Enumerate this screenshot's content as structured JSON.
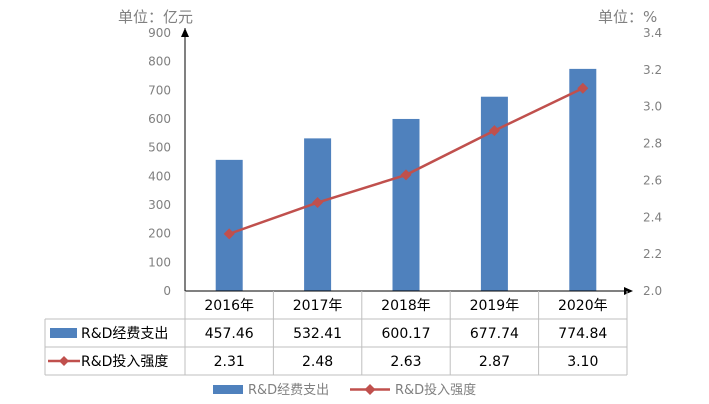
{
  "chart_data": {
    "type": "bar+line",
    "categories": [
      "2016年",
      "2017年",
      "2018年",
      "2019年",
      "2020年"
    ],
    "series": [
      {
        "name": "R&D经费支出",
        "type": "bar",
        "axis": "left",
        "values": [
          457.46,
          532.41,
          600.17,
          677.74,
          774.84
        ],
        "labels": [
          "457.46",
          "532.41",
          "600.17",
          "677.74",
          "774.84"
        ],
        "color": "#4f81bd"
      },
      {
        "name": "R&D投入强度",
        "type": "line",
        "axis": "right",
        "values": [
          2.31,
          2.48,
          2.63,
          2.87,
          3.1
        ],
        "labels": [
          "2.31",
          "2.48",
          "2.63",
          "2.87",
          "3.10"
        ],
        "color": "#c0504d",
        "marker": "diamond"
      }
    ],
    "left_unit": "单位：亿元",
    "right_unit": "单位：%",
    "ylim_left": [
      0,
      900
    ],
    "yticks_left": [
      "0",
      "100",
      "200",
      "300",
      "400",
      "500",
      "600",
      "700",
      "800",
      "900"
    ],
    "ylim_right": [
      2.0,
      3.4
    ],
    "yticks_right": [
      "2.0",
      "2.2",
      "2.4",
      "2.6",
      "2.8",
      "3.0",
      "3.2",
      "3.4"
    ],
    "grid": false,
    "data_table": true,
    "legend_position": "bottom"
  }
}
